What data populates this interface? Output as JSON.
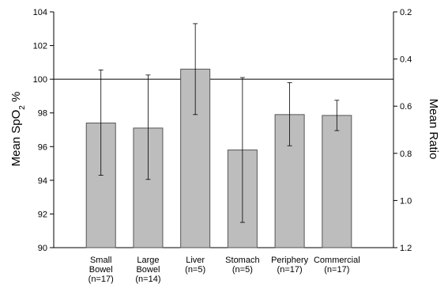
{
  "chart_data": {
    "type": "bar",
    "categories": [
      [
        "Small",
        "Bowel",
        "(n=17)"
      ],
      [
        "Large",
        "Bowel",
        "(n=14)"
      ],
      [
        "Liver",
        "(n=5)"
      ],
      [
        "Stomach",
        "(n=5)"
      ],
      [
        "Periphery",
        "(n=17)"
      ],
      [
        "Commercial",
        "(n=17)"
      ]
    ],
    "values": [
      97.4,
      97.1,
      100.6,
      95.8,
      97.9,
      97.85
    ],
    "error_low": [
      94.3,
      94.05,
      97.9,
      91.5,
      96.05,
      96.95
    ],
    "error_high": [
      100.55,
      100.25,
      103.3,
      100.1,
      99.8,
      98.75
    ],
    "ylabel_left": {
      "main": "Mean SpO",
      "sub": "2",
      "suffix": " %"
    },
    "ylabel_right": "Mean Ratio",
    "ylim_left": [
      90,
      104
    ],
    "yticks_left": [
      "90",
      "92",
      "94",
      "96",
      "98",
      "100",
      "102",
      "104"
    ],
    "yticks_right": [
      "0.2",
      "0.4",
      "0.6",
      "0.8",
      "1.0",
      "1.2"
    ],
    "ylim_right": [
      0.2,
      1.2
    ],
    "right_axis_inverted": true,
    "reference_line": 100,
    "bar_color": "#bdbdbd",
    "bar_edge_color": "#555555"
  }
}
